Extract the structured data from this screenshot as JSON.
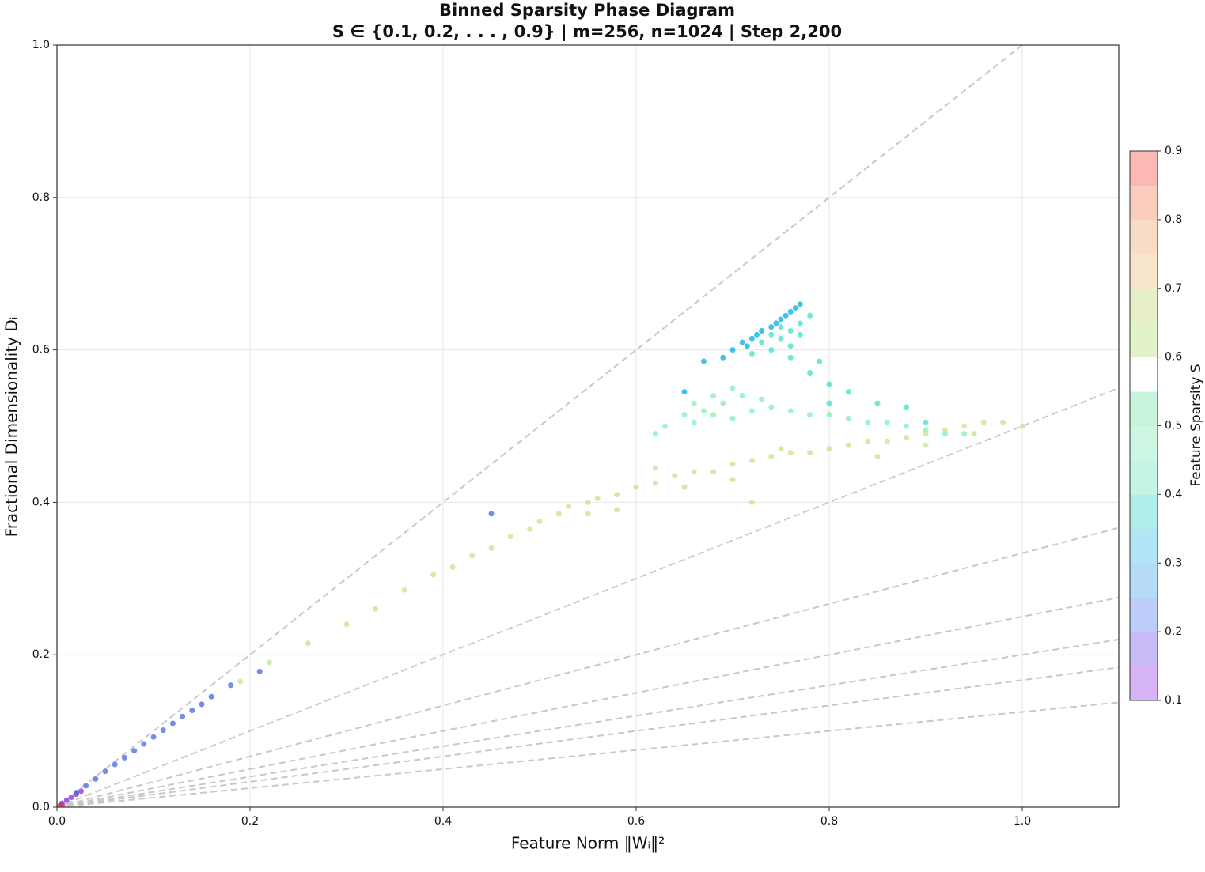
{
  "chart_data": {
    "type": "scatter",
    "title": "Binned Sparsity Phase Diagram",
    "subtitle": "S ∈ {0.1, 0.2, . . . , 0.9} | m=256, n=1024 | Step 2,200",
    "x_label": "Feature Norm ‖Wᵢ‖²",
    "y_label": "Fractional Dimensionality Dᵢ",
    "xlim": [
      0,
      1.1
    ],
    "ylim": [
      0,
      1
    ],
    "xticks": [
      {
        "value": 0,
        "label": "0.0"
      },
      0.2,
      0.4,
      0.6,
      0.8,
      {
        "value": 1,
        "label": "1.0"
      }
    ],
    "yticks": [
      {
        "value": 0,
        "label": "0.0"
      },
      0.2,
      0.4,
      0.6,
      0.8,
      {
        "value": 1,
        "label": "1.0"
      }
    ],
    "grid": true,
    "reference_slopes": [
      1,
      0.5,
      0.3333,
      0.25,
      0.2,
      0.1667,
      0.125
    ],
    "reference_color": "#c8c8c8",
    "colorbar": {
      "label": "Feature Sparsity S",
      "lim": [
        0.1,
        0.9
      ],
      "ticks": [
        0.1,
        0.2,
        0.3,
        0.4,
        0.5,
        0.6,
        0.7,
        0.8,
        0.9
      ],
      "colors": [
        "#d6b4f7",
        "#c8bbf7",
        "#bccdf7",
        "#b6dbf6",
        "#b2e5f5",
        "#aeefec",
        "#c4f5e4",
        "#cdf6e3",
        "#c6f3da",
        "#ffffff",
        "#e2f3c9",
        "#e6efc7",
        "#f8e5cb",
        "#f9dcc8",
        "#fbcdbf",
        "#fbb9b4"
      ]
    },
    "series": [
      {
        "color": "#e8603c",
        "x": [
          0.001,
          0.003,
          0.006
        ],
        "values": [
          0.001,
          0.002,
          0.003
        ]
      },
      {
        "color": "#8a2be2",
        "x": [
          0.005,
          0.01,
          0.015,
          0.02,
          0.025
        ],
        "values": [
          0.005,
          0.009,
          0.013,
          0.017,
          0.021
        ]
      },
      {
        "color": "#4169e1",
        "x": [
          0.02,
          0.03,
          0.04,
          0.05,
          0.06,
          0.07,
          0.08,
          0.09,
          0.1,
          0.11,
          0.12,
          0.13,
          0.14,
          0.15,
          0.16,
          0.18,
          0.21,
          0.45
        ],
        "values": [
          0.019,
          0.028,
          0.037,
          0.047,
          0.056,
          0.065,
          0.074,
          0.083,
          0.092,
          0.101,
          0.11,
          0.119,
          0.127,
          0.135,
          0.145,
          0.16,
          0.178,
          0.385
        ]
      },
      {
        "color": "#c2e58a",
        "x": [
          0.19,
          0.22,
          0.26,
          0.3,
          0.33,
          0.36,
          0.39,
          0.41,
          0.43,
          0.45,
          0.47,
          0.49,
          0.5,
          0.52,
          0.53,
          0.55,
          0.56,
          0.58,
          0.6,
          0.62,
          0.64,
          0.66,
          0.68,
          0.7,
          0.72,
          0.74,
          0.76,
          0.78,
          0.8,
          0.82,
          0.84,
          0.86,
          0.88,
          0.9,
          0.92,
          0.94,
          0.96,
          0.98,
          1.0,
          0.58,
          0.65,
          0.72,
          0.75,
          0.62,
          0.85,
          0.7,
          0.55,
          0.9,
          0.95
        ],
        "values": [
          0.165,
          0.19,
          0.215,
          0.24,
          0.26,
          0.285,
          0.305,
          0.315,
          0.33,
          0.34,
          0.355,
          0.365,
          0.375,
          0.385,
          0.395,
          0.4,
          0.405,
          0.41,
          0.42,
          0.425,
          0.435,
          0.44,
          0.44,
          0.45,
          0.455,
          0.46,
          0.465,
          0.465,
          0.47,
          0.475,
          0.48,
          0.48,
          0.485,
          0.49,
          0.495,
          0.5,
          0.505,
          0.505,
          0.5,
          0.39,
          0.42,
          0.4,
          0.47,
          0.445,
          0.46,
          0.43,
          0.385,
          0.475,
          0.49
        ]
      },
      {
        "color": "#80f2b0",
        "x": [
          0.65,
          0.66,
          0.67,
          0.68,
          0.69,
          0.7,
          0.71,
          0.72,
          0.7,
          0.68,
          0.74,
          0.76,
          0.78,
          0.8,
          0.82,
          0.84,
          0.86,
          0.88,
          0.9,
          0.92,
          0.94,
          0.73,
          0.66,
          0.63,
          0.62
        ],
        "values": [
          0.515,
          0.53,
          0.52,
          0.54,
          0.53,
          0.55,
          0.54,
          0.52,
          0.51,
          0.515,
          0.525,
          0.52,
          0.515,
          0.515,
          0.51,
          0.505,
          0.505,
          0.5,
          0.495,
          0.49,
          0.49,
          0.535,
          0.505,
          0.5,
          0.49
        ]
      },
      {
        "color": "#40e0cc",
        "x": [
          0.73,
          0.74,
          0.75,
          0.76,
          0.77,
          0.78,
          0.74,
          0.76,
          0.72,
          0.75,
          0.77,
          0.76,
          0.78,
          0.8,
          0.82,
          0.85,
          0.88,
          0.9,
          0.79,
          0.8
        ],
        "values": [
          0.61,
          0.62,
          0.615,
          0.625,
          0.635,
          0.645,
          0.6,
          0.605,
          0.595,
          0.63,
          0.62,
          0.59,
          0.57,
          0.555,
          0.545,
          0.53,
          0.525,
          0.505,
          0.585,
          0.53
        ]
      },
      {
        "color": "#00aee6",
        "x": [
          0.7,
          0.71,
          0.72,
          0.73,
          0.74,
          0.75,
          0.76,
          0.77,
          0.755,
          0.725,
          0.715,
          0.745,
          0.765,
          0.67,
          0.65,
          0.69
        ],
        "values": [
          0.6,
          0.61,
          0.615,
          0.625,
          0.63,
          0.64,
          0.65,
          0.66,
          0.645,
          0.62,
          0.605,
          0.635,
          0.655,
          0.585,
          0.545,
          0.59
        ]
      }
    ]
  }
}
